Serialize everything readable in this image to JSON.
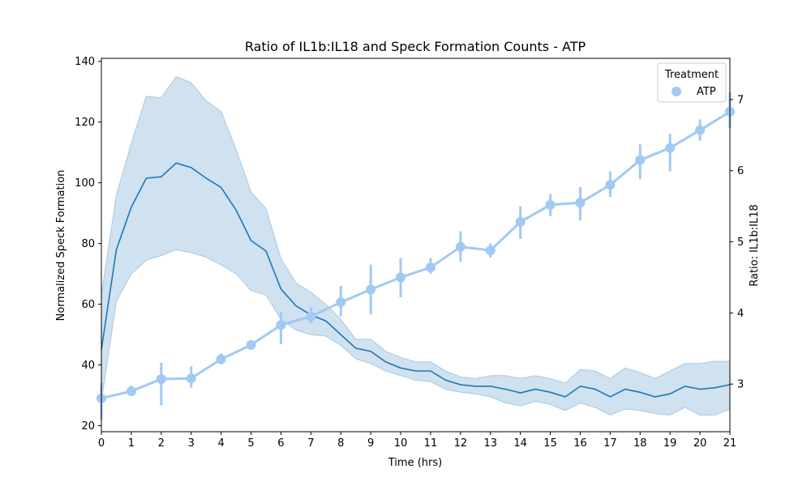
{
  "chart_data": {
    "type": "line",
    "title": "Ratio of IL1b:IL18 and Speck Formation Counts - ATP",
    "xlabel": "Time (hrs)",
    "ylabel_left": "Normalized Speck Formation",
    "ylabel_right": "Ratio: IL1b:IL18",
    "xlim": [
      0,
      21
    ],
    "ylim_left": [
      18,
      141
    ],
    "ylim_right": [
      2.33,
      7.58
    ],
    "x_ticks": [
      0,
      1,
      2,
      3,
      4,
      5,
      6,
      7,
      8,
      9,
      10,
      11,
      12,
      13,
      14,
      15,
      16,
      17,
      18,
      19,
      20,
      21
    ],
    "y_ticks_left": [
      20,
      40,
      60,
      80,
      100,
      120,
      140
    ],
    "y_ticks_right": [
      3,
      4,
      5,
      6,
      7
    ],
    "grid": false,
    "legend": {
      "title": "Treatment",
      "entries": [
        "ATP"
      ],
      "placement": "top-right"
    },
    "colors": {
      "speck_line": "#1f77b4",
      "speck_band": "#a9c9e2",
      "ratio": "#a1c9f4"
    },
    "speck_series": {
      "axis": "left",
      "x": [
        0,
        0.5,
        1,
        1.5,
        2,
        2.5,
        3,
        3.5,
        4,
        4.5,
        5,
        5.5,
        6,
        6.5,
        7,
        7.5,
        8,
        8.5,
        9,
        9.5,
        10,
        10.5,
        11,
        11.5,
        12,
        12.5,
        13,
        13.5,
        14,
        14.5,
        15,
        15.5,
        16,
        16.5,
        17,
        17.5,
        18,
        18.5,
        19,
        19.5,
        20,
        20.5,
        21
      ],
      "mean": [
        45,
        78,
        92,
        101.5,
        102,
        106.5,
        105,
        101.5,
        98.5,
        91,
        81,
        77.5,
        65,
        59.5,
        56.5,
        54.5,
        50,
        45.5,
        44.5,
        41,
        39,
        38,
        38,
        35,
        33.5,
        33,
        33,
        32,
        30.8,
        32,
        31,
        29.5,
        33,
        32,
        29.5,
        32,
        31,
        29.5,
        30.5,
        33,
        32,
        32.5,
        33.5
      ],
      "lower": [
        28,
        61,
        70,
        74.5,
        76,
        78,
        77,
        75.5,
        73,
        70,
        64.5,
        63,
        55,
        51.5,
        50,
        49.5,
        46.5,
        42,
        40.5,
        38,
        36.5,
        35,
        34.5,
        32,
        31,
        30.5,
        29.5,
        27.5,
        26.5,
        28,
        27,
        25,
        27.5,
        26,
        23.5,
        25.5,
        25,
        24,
        23.5,
        26,
        23.5,
        23.5,
        25.5
      ],
      "upper": [
        63,
        96,
        113,
        128.5,
        128,
        135,
        133,
        127,
        123.5,
        111,
        97,
        91.5,
        75,
        67,
        64,
        60,
        55,
        48.5,
        48.5,
        44.5,
        42.5,
        41,
        41,
        38,
        36,
        35.5,
        36.5,
        36.5,
        35.5,
        36.5,
        35.5,
        34,
        38.5,
        38,
        35.5,
        39,
        37.5,
        35.5,
        38,
        40.5,
        40.5,
        41.2,
        41.2
      ]
    },
    "ratio_series": {
      "axis": "right",
      "name": "ATP",
      "x": [
        0,
        1,
        2,
        3,
        4,
        5,
        6,
        7,
        8,
        9,
        10,
        11,
        12,
        13,
        14,
        15,
        16,
        17,
        18,
        19,
        20,
        21
      ],
      "values": [
        2.8,
        2.9,
        3.07,
        3.08,
        3.35,
        3.55,
        3.83,
        3.95,
        4.15,
        4.33,
        4.5,
        4.64,
        4.93,
        4.88,
        5.28,
        5.52,
        5.55,
        5.8,
        6.15,
        6.32,
        6.57,
        6.83
      ],
      "err_low": [
        2.5,
        2.85,
        2.7,
        2.95,
        3.28,
        3.5,
        3.56,
        3.85,
        3.95,
        3.98,
        4.22,
        4.55,
        4.72,
        4.78,
        5.04,
        5.36,
        5.3,
        5.63,
        5.88,
        5.99,
        6.42,
        6.6
      ],
      "err_high": [
        3.02,
        2.98,
        3.3,
        3.25,
        3.43,
        3.6,
        4.01,
        4.08,
        4.38,
        4.68,
        4.77,
        4.77,
        5.15,
        4.98,
        5.5,
        5.67,
        5.77,
        5.99,
        6.37,
        6.52,
        6.72,
        7.1
      ]
    }
  }
}
